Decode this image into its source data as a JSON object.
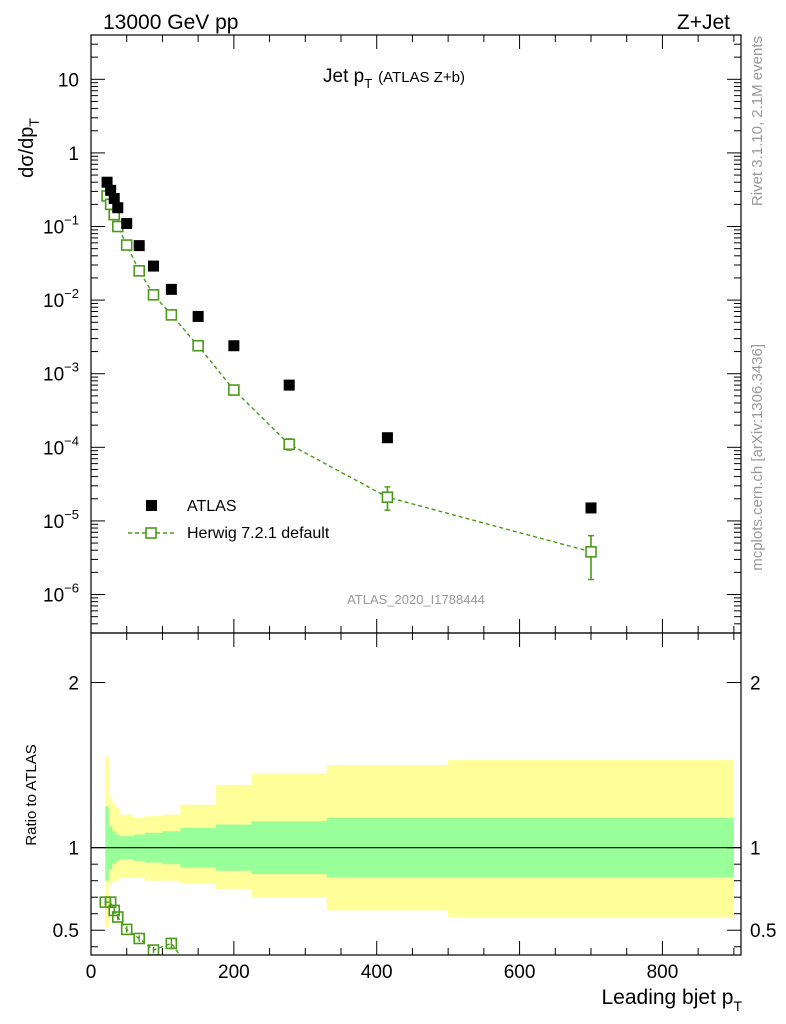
{
  "header": {
    "left": "13000 GeV pp",
    "right": "Z+Jet"
  },
  "side_labels": {
    "rivet": "Rivet 3.1.10,  2.1M events",
    "mcplots": "mcplots.cern.ch [arXiv:1306.3436]"
  },
  "chart_data": [
    {
      "type": "scatter",
      "panel": "main",
      "title": "Jet p",
      "title_sub": "T",
      "title_note": "(ATLAS Z+b)",
      "ylabel": "dσ/dp",
      "ylabel_sub": "T",
      "yscale": "log",
      "ylim": [
        3e-07,
        40
      ],
      "xlim": [
        0,
        910
      ],
      "y_tick_labels": [
        {
          "value": 10,
          "base": "10",
          "exp": ""
        },
        {
          "value": 1,
          "base": "1",
          "exp": ""
        },
        {
          "value": 0.1,
          "base": "10",
          "exp": "−1"
        },
        {
          "value": 0.01,
          "base": "10",
          "exp": "−2"
        },
        {
          "value": 0.001,
          "base": "10",
          "exp": "−3"
        },
        {
          "value": 0.0001,
          "base": "10",
          "exp": "−4"
        },
        {
          "value": 1e-05,
          "base": "10",
          "exp": "−5"
        },
        {
          "value": 1e-06,
          "base": "10",
          "exp": "−6"
        }
      ],
      "watermark": "ATLAS_2020_I1788444",
      "legend": {
        "position": "bottom-left",
        "entries": [
          "ATLAS",
          "Herwig 7.2.1 default"
        ]
      },
      "series": [
        {
          "name": "ATLAS",
          "color": "#000000",
          "marker": "filled-square",
          "x": [
            22.5,
            27.5,
            32.5,
            37.5,
            50,
            67.5,
            87.5,
            112.5,
            150,
            200,
            277.5,
            415,
            700
          ],
          "y": [
            0.4,
            0.31,
            0.24,
            0.18,
            0.11,
            0.055,
            0.029,
            0.014,
            0.006,
            0.0024,
            0.0007,
            0.000135,
            1.5e-05
          ]
        },
        {
          "name": "Herwig 7.2.1 default",
          "color": "#4a9a1a",
          "marker": "open-square",
          "line": "dashed",
          "x": [
            22.5,
            27.5,
            32.5,
            37.5,
            50,
            67.5,
            87.5,
            112.5,
            150,
            200,
            277.5,
            415,
            700
          ],
          "y": [
            0.26,
            0.2,
            0.145,
            0.1,
            0.056,
            0.025,
            0.0118,
            0.0063,
            0.0024,
            0.0006,
            0.00011,
            2.1e-05,
            3.8e-06
          ],
          "y_err_low": [
            0,
            0,
            0,
            0,
            0,
            0,
            0,
            0,
            0,
            0,
            1.8e-05,
            7e-06,
            2.2e-06
          ],
          "y_err_high": [
            0,
            0,
            0,
            0,
            0,
            0,
            0,
            0,
            0,
            0,
            2e-05,
            8e-06,
            2.5e-06
          ]
        }
      ]
    },
    {
      "type": "line",
      "panel": "ratio",
      "ylabel": "Ratio to ATLAS",
      "xlabel": "Leading bjet p",
      "xlabel_sub": "T",
      "xlim": [
        0,
        910
      ],
      "ylim": [
        0.35,
        2.3
      ],
      "x_tick_labels": [
        "0",
        "200",
        "400",
        "600",
        "800"
      ],
      "y_tick_labels": [
        "0.5",
        "1",
        "2"
      ],
      "bands": [
        {
          "name": "total uncertainty",
          "color": "#ffff99",
          "bins": [
            20,
            25,
            30,
            35,
            40,
            60,
            75,
            100,
            125,
            175,
            225,
            330,
            500,
            900
          ],
          "low": [
            0.52,
            0.78,
            0.8,
            0.8,
            0.82,
            0.82,
            0.8,
            0.8,
            0.78,
            0.75,
            0.7,
            0.62,
            0.58
          ],
          "high": [
            1.55,
            1.3,
            1.27,
            1.24,
            1.2,
            1.18,
            1.19,
            1.2,
            1.26,
            1.38,
            1.45,
            1.5,
            1.53
          ]
        },
        {
          "name": "statistical uncertainty",
          "color": "#99ff99",
          "bins": [
            20,
            25,
            30,
            35,
            40,
            60,
            75,
            100,
            125,
            175,
            225,
            330,
            500,
            900
          ],
          "low": [
            0.8,
            0.87,
            0.9,
            0.92,
            0.93,
            0.92,
            0.91,
            0.9,
            0.88,
            0.86,
            0.84,
            0.82,
            0.82
          ],
          "high": [
            1.25,
            1.13,
            1.1,
            1.08,
            1.07,
            1.08,
            1.09,
            1.1,
            1.12,
            1.14,
            1.16,
            1.18,
            1.18
          ]
        }
      ],
      "reference_line": 1,
      "series": [
        {
          "name": "Herwig 7.2.1 default / ATLAS",
          "color": "#4a9a1a",
          "marker": "open-square",
          "x": [
            20,
            27.5,
            32.5,
            37.5,
            50,
            67.5,
            87.5,
            112.5
          ],
          "y": [
            0.67,
            0.67,
            0.62,
            0.58,
            0.505,
            0.45,
            0.38,
            0.42
          ],
          "y_err": [
            0.02,
            0.02,
            0.02,
            0.02,
            0.02,
            0.02,
            0.02,
            0.035
          ]
        }
      ]
    }
  ]
}
